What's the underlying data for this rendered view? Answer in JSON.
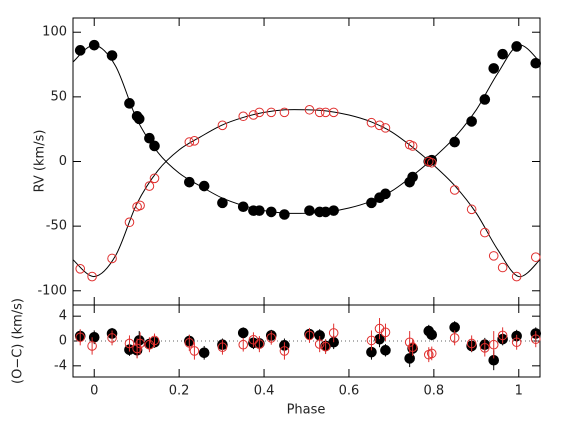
{
  "chart_data": [
    {
      "type": "scatter",
      "y_label": "RV (km/s)",
      "xlim": [
        -0.05,
        1.05
      ],
      "ylim": [
        -111,
        111
      ],
      "xticks": [
        0,
        0.2,
        0.4,
        0.6,
        0.8,
        1
      ],
      "yticks": [
        -100,
        -50,
        0,
        50,
        100
      ],
      "show_xtick_labels": false,
      "series": [
        {
          "color": "#000000",
          "marker": "filled",
          "x": [
            -0.033,
            0,
            0.042,
            0.083,
            0.101,
            0.106,
            0.13,
            0.142,
            0.224,
            0.259,
            0.302,
            0.351,
            0.375,
            0.389,
            0.417,
            0.448,
            0.507,
            0.531,
            0.545,
            0.564,
            0.653,
            0.672,
            0.686,
            0.743,
            0.75,
            0.788,
            0.795,
            0.849,
            0.889,
            0.92,
            0.941,
            0.962,
            0.995,
            1.04
          ],
          "values": [
            86,
            90,
            82,
            45,
            35,
            33,
            18,
            12,
            -16,
            -19,
            -32,
            -35,
            -38,
            -38,
            -39,
            -41,
            -38,
            -39,
            -39,
            -38,
            -32,
            -28,
            -25,
            -16,
            -12,
            0,
            1,
            15,
            31,
            48,
            72,
            83,
            89,
            76
          ]
        },
        {
          "color": "#e0302f",
          "marker": "open",
          "x": [
            -0.033,
            -0.005,
            0.042,
            0.083,
            0.101,
            0.108,
            0.13,
            0.142,
            0.224,
            0.236,
            0.302,
            0.351,
            0.375,
            0.389,
            0.417,
            0.448,
            0.507,
            0.531,
            0.545,
            0.564,
            0.653,
            0.672,
            0.686,
            0.743,
            0.75,
            0.788,
            0.795,
            0.849,
            0.889,
            0.92,
            0.941,
            0.962,
            0.995,
            1.04
          ],
          "values": [
            -83,
            -89,
            -75,
            -47,
            -35,
            -34,
            -19,
            -13,
            15,
            16,
            28,
            35,
            36,
            38,
            38,
            38,
            40,
            38,
            38,
            38,
            30,
            28,
            26,
            13,
            12,
            0,
            -1,
            -22,
            -37,
            -55,
            -73,
            -82,
            -89,
            -74
          ]
        }
      ],
      "model_lines": [
        {
          "color": "#000000",
          "x": [
            -0.05,
            0,
            0.05,
            0.1,
            0.15,
            0.2,
            0.25,
            0.3,
            0.35,
            0.4,
            0.45,
            0.5,
            0.55,
            0.6,
            0.65,
            0.7,
            0.75,
            0.8,
            0.85,
            0.9,
            0.95,
            1,
            1.05
          ],
          "values": [
            77,
            90,
            74,
            33,
            7,
            -9,
            -19,
            -28,
            -34,
            -38,
            -40,
            -40,
            -39,
            -36,
            -31,
            -23,
            -11,
            3,
            19,
            40,
            68,
            90,
            77
          ]
        },
        {
          "color": "#000000",
          "x": [
            -0.05,
            0,
            0.05,
            0.1,
            0.15,
            0.2,
            0.25,
            0.3,
            0.35,
            0.4,
            0.45,
            0.5,
            0.55,
            0.6,
            0.65,
            0.7,
            0.75,
            0.8,
            0.85,
            0.9,
            0.95,
            1,
            1.05
          ],
          "values": [
            -76,
            -89,
            -73,
            -33,
            -7,
            9,
            19,
            28,
            34,
            38,
            40,
            40,
            39,
            36,
            31,
            23,
            11,
            -3,
            -19,
            -40,
            -68,
            -89,
            -76
          ]
        }
      ]
    },
    {
      "type": "scatter",
      "y_label": "(O−C) (km/s)",
      "x_label": "Phase",
      "xlim": [
        -0.05,
        1.05
      ],
      "ylim": [
        -5.8,
        5.8
      ],
      "xticks": [
        0,
        0.2,
        0.4,
        0.6,
        0.8,
        1
      ],
      "yticks": [
        -4,
        0,
        4
      ],
      "show_xtick_labels": true,
      "reference_line": 0,
      "series": [
        {
          "color": "#000000",
          "marker": "filled",
          "x": [
            -0.033,
            0,
            0.042,
            0.083,
            0.101,
            0.106,
            0.13,
            0.142,
            0.224,
            0.259,
            0.302,
            0.351,
            0.375,
            0.389,
            0.417,
            0.448,
            0.507,
            0.531,
            0.545,
            0.564,
            0.653,
            0.672,
            0.686,
            0.743,
            0.75,
            0.788,
            0.795,
            0.849,
            0.889,
            0.92,
            0.941,
            0.962,
            0.995,
            1.04
          ],
          "values": [
            0.8,
            0.6,
            1.2,
            -1.4,
            -1.5,
            0.1,
            -0.5,
            -0.2,
            0.0,
            -1.9,
            -0.6,
            1.3,
            -0.3,
            -0.4,
            0.9,
            -0.7,
            1.1,
            0.9,
            -0.8,
            -0.2,
            -1.8,
            0.3,
            -1.5,
            -2.8,
            -1.2,
            1.6,
            1.0,
            2.2,
            -0.8,
            -0.6,
            -3.1,
            0.3,
            0.8,
            1.2
          ],
          "errors": [
            1.0,
            1.1,
            0.9,
            1.0,
            1.2,
            1.5,
            1.0,
            0.9,
            1.0,
            1.1,
            1.0,
            0.9,
            1.0,
            1.0,
            0.9,
            1.1,
            0.9,
            1.0,
            1.0,
            1.1,
            1.2,
            1.3,
            1.0,
            1.4,
            1.1,
            1.0,
            0.9,
            1.0,
            1.0,
            1.1,
            1.6,
            1.0,
            1.0,
            1.0
          ]
        },
        {
          "color": "#e0302f",
          "marker": "open",
          "x": [
            -0.033,
            -0.005,
            0.042,
            0.083,
            0.101,
            0.108,
            0.13,
            0.142,
            0.224,
            0.236,
            0.302,
            0.351,
            0.375,
            0.389,
            0.417,
            0.448,
            0.507,
            0.531,
            0.545,
            0.564,
            0.653,
            0.672,
            0.686,
            0.743,
            0.75,
            0.788,
            0.795,
            0.849,
            0.889,
            0.92,
            0.941,
            0.962,
            0.995,
            1.04
          ],
          "values": [
            0.6,
            -0.8,
            0.5,
            -0.4,
            -1.2,
            -0.4,
            -0.6,
            0.1,
            -0.3,
            -1.6,
            -1.0,
            -0.6,
            0.2,
            -0.5,
            0.5,
            -1.6,
            0.9,
            -0.5,
            -0.9,
            1.3,
            0.1,
            2.0,
            1.4,
            -0.2,
            -1.0,
            -2.2,
            -2.0,
            0.5,
            -0.4,
            -1.1,
            -0.6,
            0.9,
            -0.2,
            0.3
          ],
          "errors": [
            1.3,
            1.4,
            1.2,
            1.3,
            1.6,
            1.8,
            1.2,
            1.1,
            1.3,
            1.4,
            1.2,
            1.1,
            1.2,
            1.3,
            1.1,
            1.4,
            1.2,
            1.3,
            1.2,
            1.5,
            1.6,
            1.7,
            1.4,
            1.8,
            1.4,
            1.2,
            1.1,
            1.2,
            1.3,
            1.4,
            2.2,
            1.3,
            1.2,
            1.3
          ]
        }
      ]
    }
  ]
}
